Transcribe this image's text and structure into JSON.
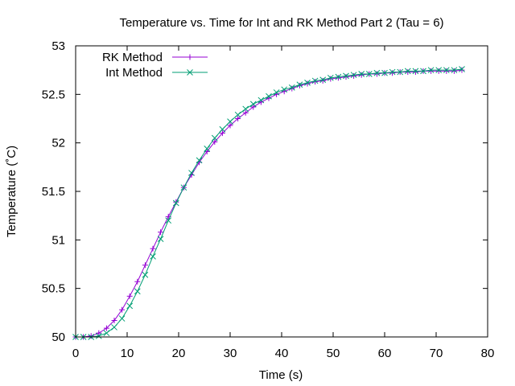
{
  "chart_data": {
    "type": "line",
    "title": "Temperature vs. Time for Int and RK Method Part 2 (Tau = 6)",
    "xlabel": "Time (s)",
    "ylabel": "Temperature (˚C)",
    "xlim": [
      0,
      80
    ],
    "ylim": [
      50,
      53
    ],
    "xticks": [
      "0",
      "10",
      "20",
      "30",
      "40",
      "50",
      "60",
      "70",
      "80"
    ],
    "yticks": [
      "50",
      "50.5",
      "51",
      "51.5",
      "52",
      "52.5",
      "53"
    ],
    "grid": false,
    "legend_position": "top-left",
    "x": [
      0,
      1.5,
      3,
      4.5,
      6,
      7.5,
      9,
      10.5,
      12,
      13.5,
      15,
      16.5,
      18,
      19.5,
      21,
      22.5,
      24,
      25.5,
      27,
      28.5,
      30,
      31.5,
      33,
      34.5,
      36,
      37.5,
      39,
      40.5,
      42,
      43.5,
      45,
      46.5,
      48,
      49.5,
      51,
      52.5,
      54,
      55.5,
      57,
      58.5,
      60,
      61.5,
      63,
      64.5,
      66,
      67.5,
      69,
      70.5,
      72,
      73.5,
      75
    ],
    "series": [
      {
        "name": "RK Method",
        "color": "#9400d3",
        "marker": "plus",
        "values": [
          50.0,
          50.0,
          50.01,
          50.04,
          50.09,
          50.17,
          50.28,
          50.42,
          50.57,
          50.74,
          50.91,
          51.08,
          51.24,
          51.39,
          51.54,
          51.67,
          51.8,
          51.91,
          52.01,
          52.1,
          52.18,
          52.25,
          52.31,
          52.37,
          52.42,
          52.46,
          52.5,
          52.53,
          52.56,
          52.59,
          52.61,
          52.63,
          52.64,
          52.66,
          52.67,
          52.68,
          52.69,
          52.7,
          52.71,
          52.71,
          52.72,
          52.72,
          52.73,
          52.73,
          52.73,
          52.74,
          52.74,
          52.74,
          52.74,
          52.74,
          52.75
        ]
      },
      {
        "name": "Int Method",
        "color": "#009e73",
        "marker": "cross",
        "values": [
          50.0,
          50.0,
          50.0,
          50.01,
          50.04,
          50.1,
          50.19,
          50.32,
          50.47,
          50.64,
          50.83,
          51.01,
          51.2,
          51.38,
          51.54,
          51.69,
          51.82,
          51.94,
          52.05,
          52.14,
          52.22,
          52.29,
          52.35,
          52.4,
          52.44,
          52.48,
          52.52,
          52.55,
          52.57,
          52.6,
          52.62,
          52.64,
          52.65,
          52.67,
          52.68,
          52.69,
          52.7,
          52.71,
          52.71,
          52.72,
          52.72,
          52.73,
          52.73,
          52.74,
          52.74,
          52.74,
          52.75,
          52.75,
          52.75,
          52.75,
          52.76
        ]
      }
    ]
  }
}
